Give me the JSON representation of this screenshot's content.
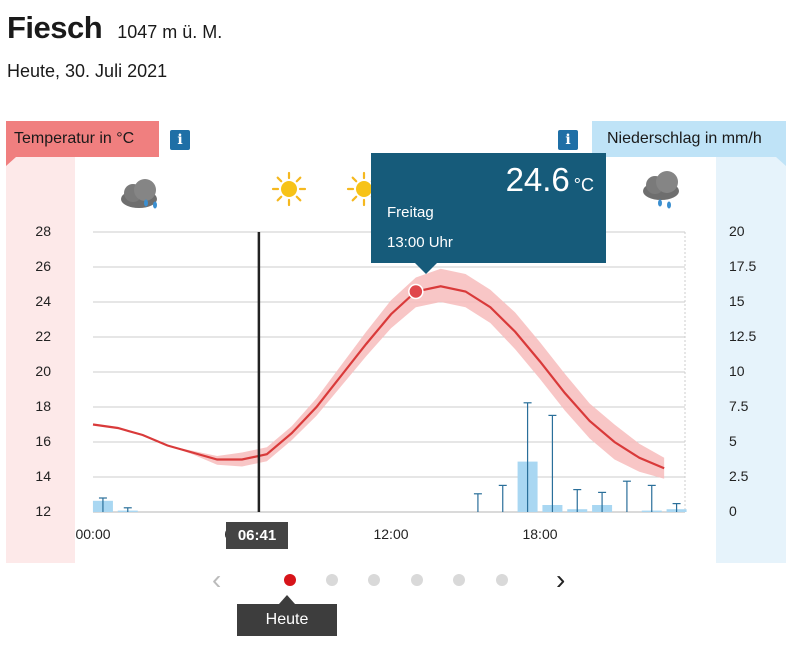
{
  "header": {
    "place": "Fiesch",
    "altitude": "1047 m ü. M.",
    "date": "Heute, 30. Juli 2021"
  },
  "labels": {
    "temperature": "Temperatur in °C",
    "precipitation": "Niederschlag in mm/h",
    "info": "i"
  },
  "weather_icons": [
    "night-partly-cloudy-rain-icon",
    "moon-icon",
    "sun-icon",
    "sun-icon",
    "cloud-rain-icon"
  ],
  "current_time": "06:41",
  "tooltip": {
    "value": "24.6",
    "unit": "°C",
    "day": "Freitag",
    "time": "13:00 Uhr"
  },
  "nav": {
    "prev": "‹",
    "next": "›",
    "today_label": "Heute",
    "dots": 6,
    "active_dot": 0
  },
  "colors": {
    "temperature_line": "#d93a3a",
    "temperature_band": "#f7bcbc",
    "precip_bar": "#a9d7f2",
    "precip_range": "#2a6f9a",
    "tooltip": "#165b7a",
    "now_line": "#222222"
  },
  "chart_data": {
    "type": "line",
    "title": "",
    "xlabel": "",
    "ylabel": "Temperatur in °C",
    "y2label": "Niederschlag in mm/h",
    "x_ticks": [
      "00:00",
      "06:00",
      "12:00",
      "18:00"
    ],
    "ylim": [
      12,
      28
    ],
    "y_ticks": [
      12,
      14,
      16,
      18,
      20,
      22,
      24,
      26,
      28
    ],
    "y2lim": [
      0,
      20
    ],
    "y2_ticks": [
      "0",
      "2.5",
      "5",
      "7.5",
      "10",
      "12.5",
      "15",
      "17.5",
      "20"
    ],
    "grid": true,
    "series": [
      {
        "name": "Temperatur",
        "x_hours": [
          0,
          1,
          2,
          3,
          4,
          5,
          6,
          7,
          8,
          9,
          10,
          11,
          12,
          13,
          14,
          15,
          16,
          17,
          18,
          19,
          20,
          21,
          22,
          23
        ],
        "values": [
          17.0,
          16.8,
          16.4,
          15.8,
          15.4,
          15.0,
          15.0,
          15.3,
          16.5,
          18.0,
          19.8,
          21.6,
          23.3,
          24.6,
          24.9,
          24.6,
          23.7,
          22.3,
          20.6,
          18.8,
          17.2,
          16.0,
          15.1,
          14.5
        ],
        "band_lower": [
          17.0,
          16.8,
          16.4,
          15.8,
          15.3,
          14.7,
          14.6,
          14.9,
          16.1,
          17.5,
          19.2,
          20.9,
          22.5,
          23.7,
          24.0,
          23.7,
          22.8,
          21.3,
          19.6,
          17.8,
          16.2,
          15.0,
          14.3,
          13.9
        ],
        "band_upper": [
          17.0,
          16.8,
          16.4,
          15.8,
          15.5,
          15.2,
          15.4,
          15.7,
          16.9,
          18.5,
          20.4,
          22.3,
          24.1,
          25.4,
          25.9,
          25.6,
          24.7,
          23.4,
          21.7,
          19.9,
          18.2,
          17.0,
          15.9,
          15.1
        ]
      },
      {
        "name": "Niederschlag",
        "bars": [
          {
            "hour": 0.4,
            "value": 0.8,
            "max": 1.0
          },
          {
            "hour": 1.4,
            "value": 0.1,
            "max": 0.3
          },
          {
            "hour": 15.5,
            "value": 0.0,
            "max": 1.3
          },
          {
            "hour": 16.5,
            "value": 0.0,
            "max": 1.9
          },
          {
            "hour": 17.5,
            "value": 3.6,
            "max": 7.8
          },
          {
            "hour": 18.5,
            "value": 0.5,
            "max": 6.9
          },
          {
            "hour": 19.5,
            "value": 0.2,
            "max": 1.6
          },
          {
            "hour": 20.5,
            "value": 0.5,
            "max": 1.4
          },
          {
            "hour": 21.5,
            "value": 0.0,
            "max": 2.2
          },
          {
            "hour": 22.5,
            "value": 0.1,
            "max": 1.9
          },
          {
            "hour": 23.5,
            "value": 0.2,
            "max": 0.6
          }
        ]
      }
    ],
    "now_hour": 6.68,
    "highlight": {
      "hour": 13,
      "value": 24.6
    }
  }
}
